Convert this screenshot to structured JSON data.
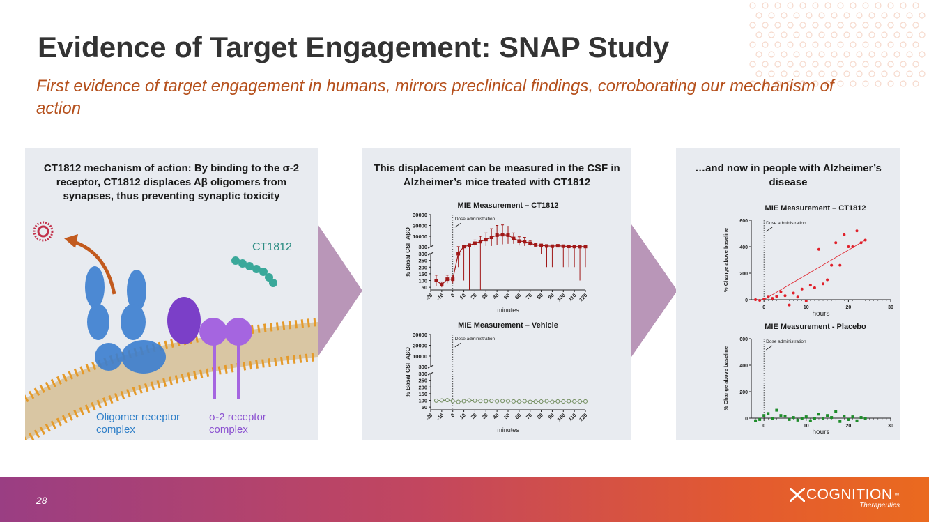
{
  "slide": {
    "title": "Evidence of Target Engagement: SNAP Study",
    "subtitle": "First evidence of target engagement in humans, mirrors preclinical findings, corroborating our mechanism of action",
    "page_number": "28"
  },
  "panel1": {
    "heading": "CT1812 mechanism of action:  By binding to the σ-2 receptor, CT1812 displaces Aβ oligomers from synapses, thus preventing synaptic toxicity",
    "drug_label": "CT1812",
    "oligomer_label": "Oligomer receptor complex",
    "sigma_label": "σ-2 receptor complex"
  },
  "panel2": {
    "heading": "This displacement can be measured in the CSF in Alzheimer’s mice treated with CT1812"
  },
  "panel3": {
    "heading": "…and now in people with Alzheimer’s disease"
  },
  "logo": {
    "name": "COGNITION",
    "tm": "™",
    "sub": "Therapeutics"
  },
  "colors": {
    "title": "#333333",
    "subtitle": "#b5501c",
    "ct1812_mouse": "#a01818",
    "vehicle": "#6e8a5a",
    "ct1812_human": "#e0202a",
    "placebo": "#1e8c2a",
    "arrow": "#b996b8",
    "drug_label": "#2b8c82",
    "oligomer_label": "#2f7fc8",
    "sigma_label": "#8a4fd0"
  },
  "chart_data": [
    {
      "id": "mouse_ct1812",
      "type": "line",
      "title": "MIE Measurement – CT1812",
      "xlabel": "minutes",
      "ylabel": "% Basal CSF AβO",
      "annotation": "Dose administration",
      "xlim": [
        -20,
        120
      ],
      "x_ticks": [
        -20,
        -10,
        0,
        10,
        20,
        30,
        40,
        50,
        60,
        70,
        80,
        90,
        100,
        110,
        120
      ],
      "y_ticks_low": [
        50,
        100,
        150,
        200,
        250,
        300
      ],
      "y_ticks_high": [
        10000,
        20000,
        30000
      ],
      "axis_break": "300",
      "series": [
        {
          "name": "CT1812",
          "x": [
            -15,
            -10,
            -5,
            0,
            5,
            10,
            15,
            20,
            25,
            30,
            35,
            40,
            45,
            50,
            55,
            60,
            65,
            70,
            75,
            80,
            85,
            90,
            95,
            100,
            105,
            110,
            115,
            120
          ],
          "y": [
            100,
            70,
            110,
            110,
            300,
            500,
            1500,
            3500,
            5000,
            7000,
            9000,
            11000,
            11500,
            11000,
            8000,
            5500,
            5000,
            3500,
            2000,
            1500,
            1000,
            800,
            1200,
            800,
            600,
            500,
            400,
            500
          ],
          "err": [
            40,
            20,
            30,
            30,
            100,
            400,
            1500,
            3000,
            5000,
            6000,
            8000,
            9000,
            9000,
            8000,
            5000,
            4000,
            4000,
            2500,
            1500,
            1200,
            800,
            600,
            800,
            600,
            400,
            300,
            300,
            300
          ]
        }
      ]
    },
    {
      "id": "mouse_vehicle",
      "type": "line",
      "title": "MIE Measurement – Vehicle",
      "xlabel": "minutes",
      "ylabel": "% Basal CSF AβO",
      "annotation": "Dose administration",
      "xlim": [
        -20,
        120
      ],
      "x_ticks": [
        -20,
        -10,
        0,
        10,
        20,
        30,
        40,
        50,
        60,
        70,
        80,
        90,
        100,
        110,
        120
      ],
      "y_ticks_low": [
        50,
        100,
        150,
        200,
        250,
        300
      ],
      "y_ticks_high": [
        10000,
        20000,
        30000
      ],
      "axis_break": "300",
      "series": [
        {
          "name": "Vehicle",
          "x": [
            -15,
            -10,
            -5,
            0,
            5,
            10,
            15,
            20,
            25,
            30,
            35,
            40,
            45,
            50,
            55,
            60,
            65,
            70,
            75,
            80,
            85,
            90,
            95,
            100,
            105,
            110,
            115,
            120
          ],
          "y": [
            98,
            100,
            102,
            95,
            90,
            95,
            100,
            98,
            96,
            95,
            97,
            94,
            96,
            95,
            93,
            92,
            95,
            90,
            91,
            92,
            95,
            90,
            93,
            92,
            94,
            93,
            92,
            93
          ]
        }
      ]
    },
    {
      "id": "human_ct1812",
      "type": "scatter",
      "title": "MIE Measurement – CT1812",
      "xlabel": "hours",
      "ylabel": "% Change above baseline",
      "annotation": "Dose administration",
      "xlim": [
        -3,
        30
      ],
      "ylim": [
        0,
        600
      ],
      "x_ticks": [
        0,
        10,
        20,
        30
      ],
      "y_ticks": [
        0,
        200,
        400,
        600
      ],
      "trendline": [
        [
          0,
          0
        ],
        [
          24,
          450
        ]
      ],
      "series": [
        {
          "name": "CT1812",
          "x": [
            -2,
            -1,
            0,
            1,
            2,
            3,
            4,
            5,
            6,
            7,
            8,
            9,
            10,
            11,
            12,
            13,
            14,
            15,
            16,
            17,
            18,
            19,
            20,
            21,
            22,
            23,
            24
          ],
          "y": [
            0,
            -5,
            5,
            20,
            10,
            25,
            60,
            30,
            -40,
            50,
            20,
            80,
            -10,
            110,
            90,
            380,
            120,
            150,
            260,
            430,
            260,
            490,
            400,
            400,
            520,
            430,
            450
          ]
        }
      ]
    },
    {
      "id": "human_placebo",
      "type": "scatter",
      "title": "MIE Measurement - Placebo",
      "xlabel": "hours",
      "ylabel": "% Change above baseline",
      "annotation": "Dose administration",
      "xlim": [
        -3,
        30
      ],
      "ylim": [
        0,
        600
      ],
      "x_ticks": [
        0,
        10,
        20,
        30
      ],
      "y_ticks": [
        0,
        200,
        400,
        600
      ],
      "series": [
        {
          "name": "Placebo",
          "x": [
            -2,
            -1,
            0,
            1,
            2,
            3,
            4,
            5,
            6,
            7,
            8,
            9,
            10,
            11,
            12,
            13,
            14,
            15,
            16,
            17,
            18,
            19,
            20,
            21,
            22,
            23,
            24
          ],
          "y": [
            -20,
            -10,
            20,
            35,
            -5,
            60,
            20,
            15,
            -10,
            5,
            -15,
            0,
            10,
            -20,
            0,
            30,
            -5,
            20,
            5,
            50,
            -25,
            15,
            -10,
            10,
            -20,
            5,
            0
          ]
        }
      ]
    }
  ]
}
